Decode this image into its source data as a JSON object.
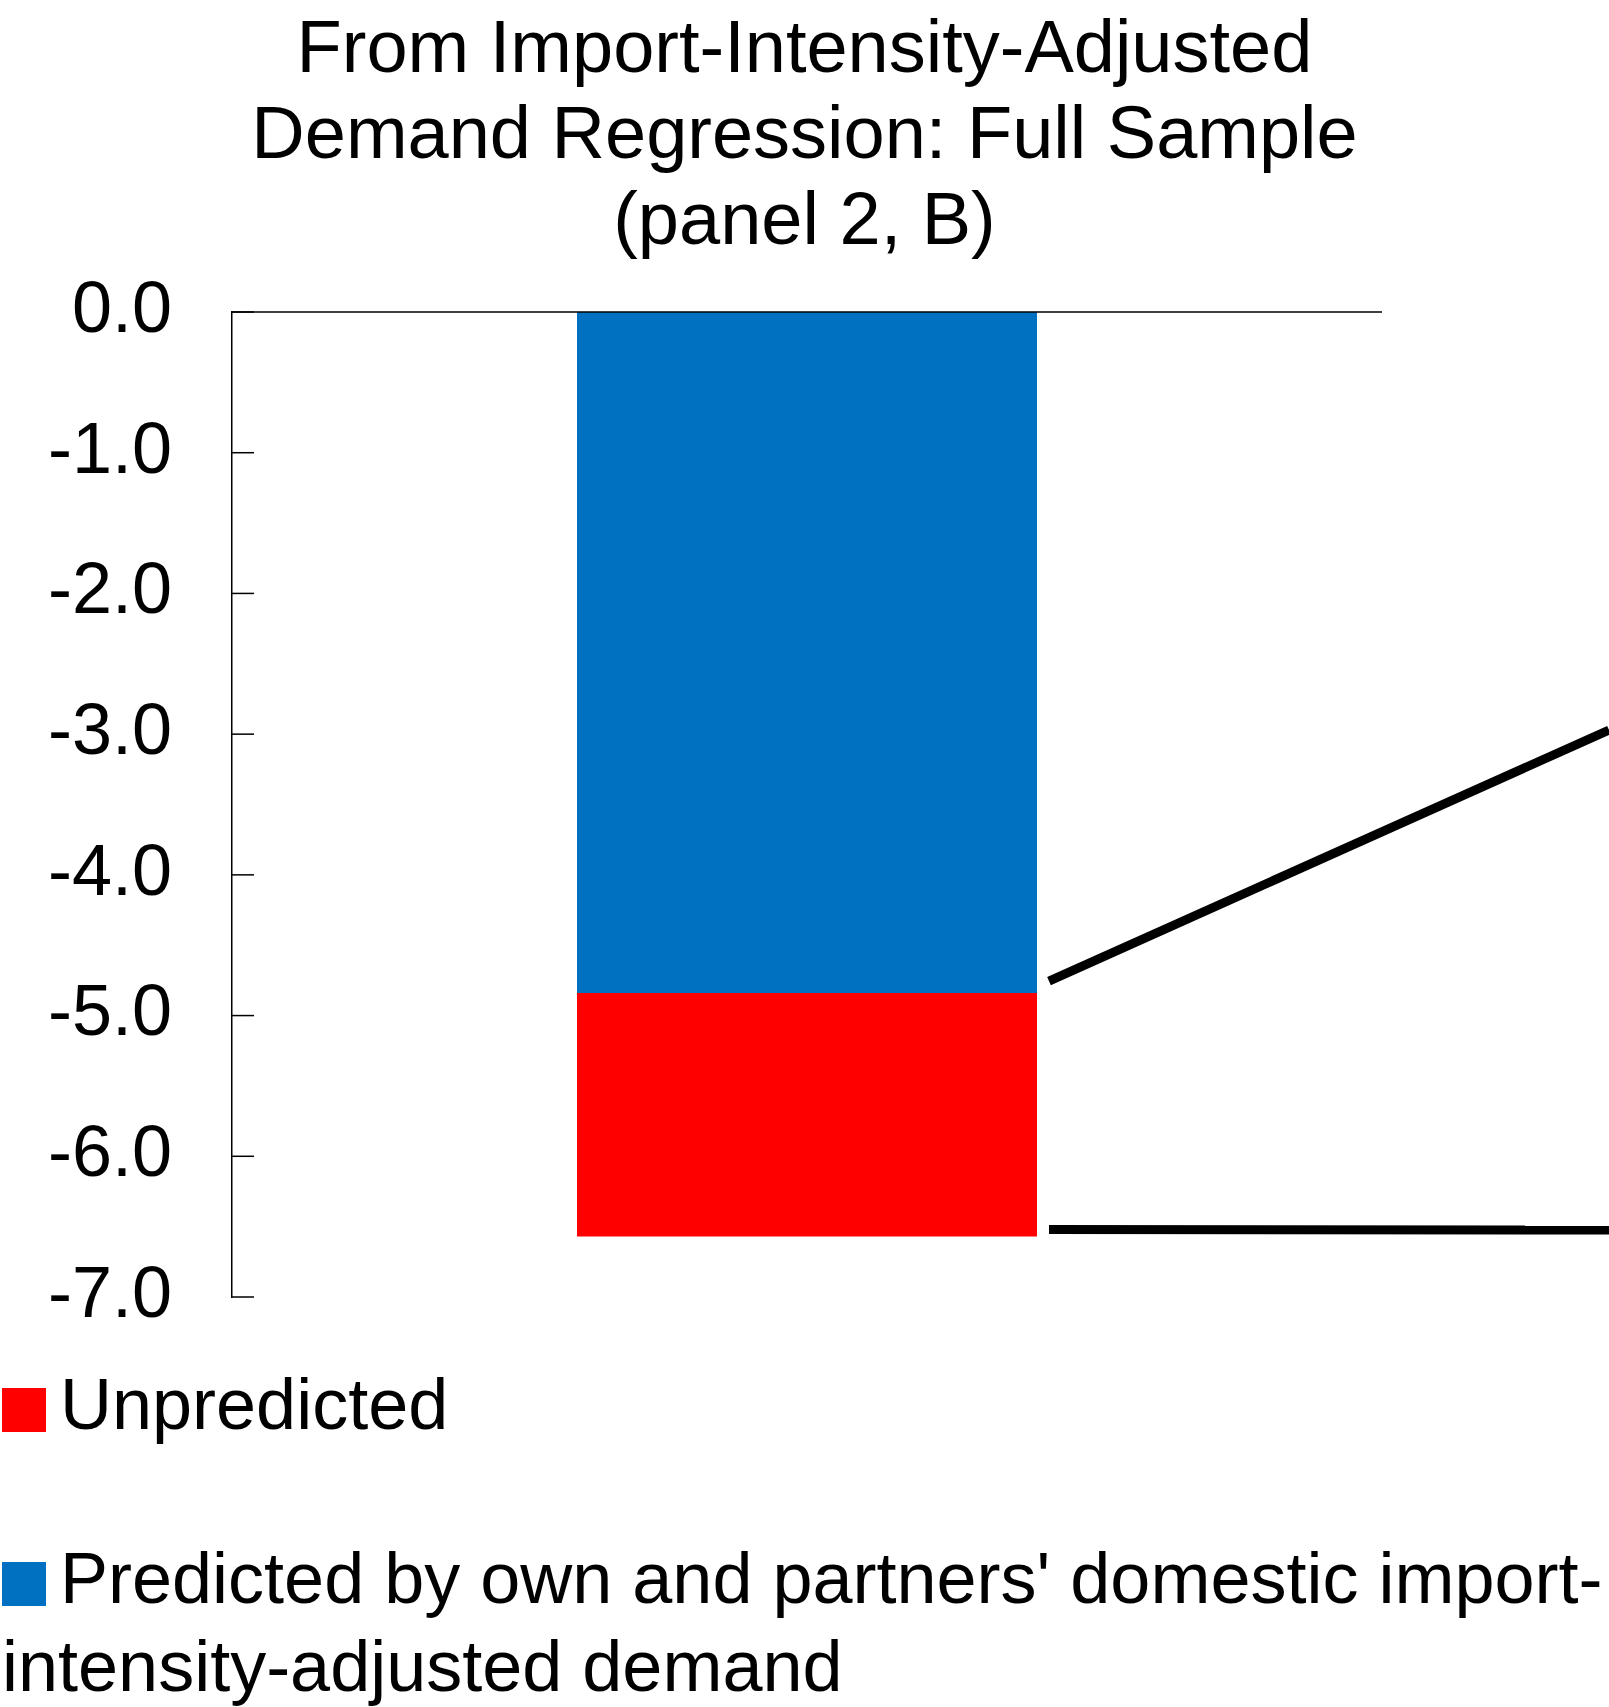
{
  "chart_data": {
    "type": "bar",
    "title": "From Import-Intensity-Adjusted\nDemand Regression: Full Sample\n(panel 2, B)",
    "categories": [
      null
    ],
    "stacked": true,
    "series": [
      {
        "name": "Predicted by own and partners' domestic import-intensity-adjusted demand",
        "color": "#0070c0",
        "values": [
          -4.84
        ]
      },
      {
        "name": "Unpredicted",
        "color": "#ff0000",
        "values": [
          -1.73
        ]
      }
    ],
    "ylim": [
      -7,
      0
    ],
    "yticks": [
      {
        "value": 0,
        "label": "0.0"
      },
      {
        "value": -1,
        "label": "-1.0"
      },
      {
        "value": -2,
        "label": "-2.0"
      },
      {
        "value": -3,
        "label": "-3.0"
      },
      {
        "value": -4,
        "label": "-4.0"
      },
      {
        "value": -5,
        "label": "-5.0"
      },
      {
        "value": -6,
        "label": "-6.0"
      },
      {
        "value": -7,
        "label": "-7.0"
      }
    ],
    "grid": false,
    "legend": "bottom"
  }
}
